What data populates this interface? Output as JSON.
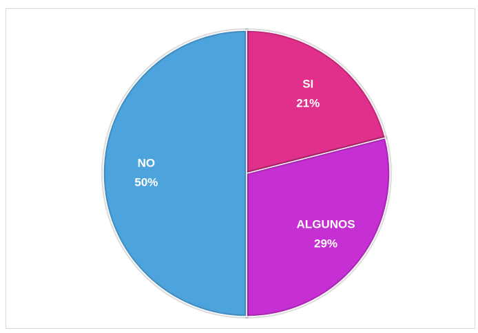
{
  "chart_data": {
    "type": "pie",
    "categories": [
      "SI",
      "ALGUNOS",
      "NO"
    ],
    "values": [
      21,
      29,
      50
    ],
    "value_labels": [
      "21%",
      "29%",
      "50%"
    ],
    "colors": [
      "#e0308b",
      "#c630d2",
      "#4da4dd"
    ]
  }
}
